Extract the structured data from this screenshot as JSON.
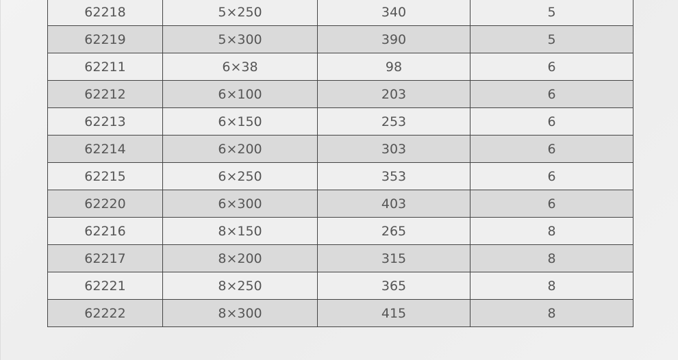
{
  "table": {
    "rows": [
      [
        "62218",
        "5×250",
        "340",
        "5"
      ],
      [
        "62219",
        "5×300",
        "390",
        "5"
      ],
      [
        "62211",
        "6×38",
        "98",
        "6"
      ],
      [
        "62212",
        "6×100",
        "203",
        "6"
      ],
      [
        "62213",
        "6×150",
        "253",
        "6"
      ],
      [
        "62214",
        "6×200",
        "303",
        "6"
      ],
      [
        "62215",
        "6×250",
        "353",
        "6"
      ],
      [
        "62220",
        "6×300",
        "403",
        "6"
      ],
      [
        "62216",
        "8×150",
        "265",
        "8"
      ],
      [
        "62217",
        "8×200",
        "315",
        "8"
      ],
      [
        "62221",
        "8×250",
        "365",
        "8"
      ],
      [
        "62222",
        "8×300",
        "415",
        "8"
      ]
    ]
  },
  "colors": {
    "row_light": "#efefef",
    "row_dark": "#dadada",
    "text": "#555555",
    "border": "#444444"
  }
}
